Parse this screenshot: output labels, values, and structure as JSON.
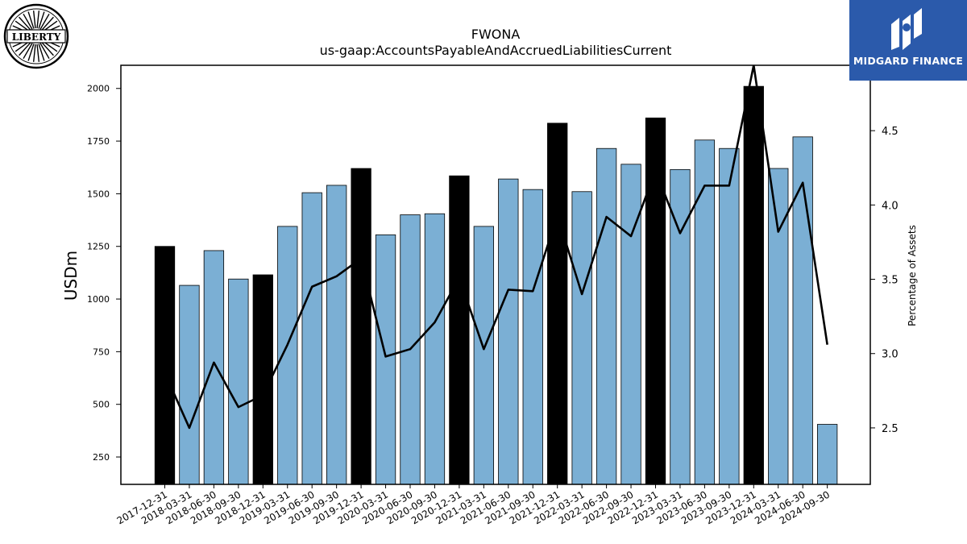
{
  "logos": {
    "left_text": "LIBERTY",
    "right_text": "MIDGARD FINANCE"
  },
  "colors": {
    "bar_normal": "#7bafd4",
    "bar_highlight": "#000000",
    "line": "#000000"
  },
  "chart_data": {
    "type": "bar",
    "title": "FWONA",
    "subtitle": "us-gaap:AccountsPayableAndAccruedLiabilitiesCurrent",
    "ylabel": "USDm",
    "y2label": "Percentage of Assets",
    "ylim": [
      120,
      2110
    ],
    "y2lim": [
      2.12,
      4.94
    ],
    "yticks": [
      250,
      500,
      750,
      1000,
      1250,
      1500,
      1750,
      2000
    ],
    "y2ticks": [
      2.5,
      3.0,
      3.5,
      4.0,
      4.5
    ],
    "y2tick_labels": [
      "2.5",
      "3.0",
      "3.5",
      "4.0",
      "4.5"
    ],
    "categories": [
      "2017-12-31",
      "2018-03-31",
      "2018-06-30",
      "2018-09-30",
      "2018-12-31",
      "2019-03-31",
      "2019-06-30",
      "2019-09-30",
      "2019-12-31",
      "2020-03-31",
      "2020-06-30",
      "2020-09-30",
      "2020-12-31",
      "2021-03-31",
      "2021-06-30",
      "2021-09-30",
      "2021-12-31",
      "2022-03-31",
      "2022-06-30",
      "2022-09-30",
      "2022-12-31",
      "2023-03-31",
      "2023-06-30",
      "2023-09-30",
      "2023-12-31",
      "2024-03-31",
      "2024-06-30",
      "2024-09-30"
    ],
    "series": [
      {
        "name": "",
        "type": "bar",
        "values": [
          1250,
          1065,
          1230,
          1095,
          1115,
          1345,
          1505,
          1540,
          1620,
          1305,
          1400,
          1405,
          1585,
          1345,
          1570,
          1520,
          1835,
          1510,
          1715,
          1640,
          1860,
          1615,
          1755,
          1715,
          2010,
          1620,
          1770,
          405
        ],
        "highlight": [
          true,
          false,
          false,
          false,
          true,
          false,
          false,
          false,
          true,
          false,
          false,
          false,
          true,
          false,
          false,
          false,
          true,
          false,
          false,
          false,
          true,
          false,
          false,
          false,
          true,
          false,
          false,
          false
        ]
      },
      {
        "name": "",
        "type": "line",
        "axis": "right",
        "values": [
          2.87,
          2.5,
          2.94,
          2.64,
          2.72,
          3.06,
          3.45,
          3.52,
          3.64,
          2.98,
          3.03,
          3.21,
          3.51,
          3.03,
          3.43,
          3.42,
          3.93,
          3.4,
          3.92,
          3.79,
          4.23,
          3.81,
          4.13,
          4.13,
          4.94,
          3.82,
          4.15,
          3.06
        ]
      }
    ],
    "grid": false,
    "legend": "none"
  }
}
